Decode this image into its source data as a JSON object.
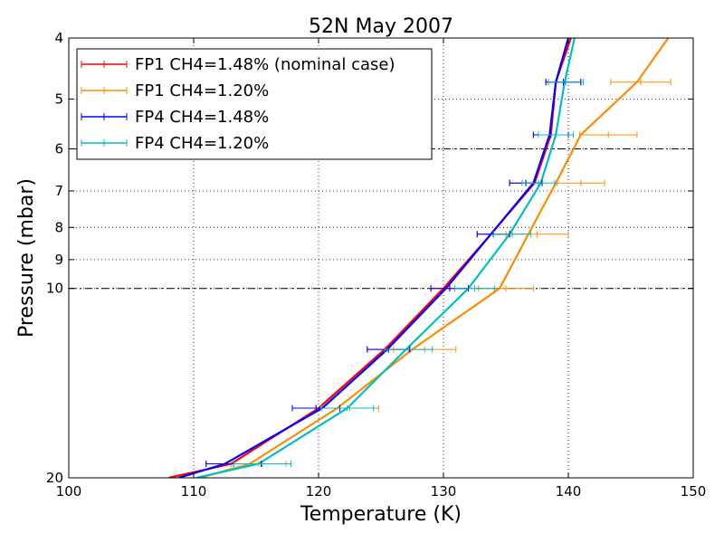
{
  "chart_data": {
    "type": "line",
    "title": "52N May 2007",
    "xlabel": "Temperature (K)",
    "ylabel": "Pressure (mbar)",
    "xlim": [
      100,
      150
    ],
    "ylim": [
      4,
      20
    ],
    "yscale": "log",
    "y_inverted": true,
    "grid": "dotted",
    "xticks": [
      100,
      110,
      120,
      130,
      140,
      150
    ],
    "xtick_labels": [
      "100",
      "110",
      "120",
      "130",
      "140",
      "150"
    ],
    "yticks": [
      4,
      5,
      6,
      7,
      8,
      9,
      10,
      20
    ],
    "ytick_labels": [
      "4",
      "5",
      "6",
      "7",
      "8",
      "9",
      "10",
      "20"
    ],
    "reference_lines": [
      6,
      10
    ],
    "legend_position": "top-left",
    "series": [
      {
        "name": "FP1 CH4=1.48% (nominal case)",
        "color": "#ff0000",
        "points": [
          [
            140.2,
            4
          ],
          [
            139,
            4.7
          ],
          [
            138.6,
            5.7
          ],
          [
            137.3,
            6.8
          ],
          [
            133.8,
            8.2
          ],
          [
            130,
            10
          ],
          [
            125.3,
            12.5
          ],
          [
            120,
            15.5
          ],
          [
            113,
            19
          ],
          [
            108,
            20
          ]
        ],
        "errorbars": [
          [
            139.6,
            4.7,
            1.4
          ],
          [
            138.6,
            5.7,
            1.4
          ],
          [
            136.6,
            6.8,
            1.3
          ],
          [
            134.0,
            8.2,
            1.3
          ],
          [
            130.5,
            10,
            1.5
          ],
          [
            125.6,
            12.5,
            1.7
          ],
          [
            119.8,
            15.5,
            1.9
          ],
          [
            113.2,
            19,
            2.2
          ]
        ]
      },
      {
        "name": "FP1 CH4=1.20%",
        "color": "#ff8c00",
        "points": [
          [
            148,
            4
          ],
          [
            145.5,
            4.7
          ],
          [
            141,
            5.7
          ],
          [
            139,
            6.8
          ],
          [
            136.8,
            8.2
          ],
          [
            134.5,
            10
          ],
          [
            127.5,
            12.5
          ],
          [
            121.5,
            15.5
          ],
          [
            114.5,
            19
          ],
          [
            110.5,
            20
          ]
        ],
        "errorbars": [
          [
            145.8,
            4.7,
            2.4
          ],
          [
            143.2,
            5.7,
            2.3
          ],
          [
            141.0,
            6.8,
            1.9
          ],
          [
            137.5,
            8.2,
            2.5
          ],
          [
            135.0,
            10,
            2.2
          ],
          [
            128.5,
            12.5,
            2.5
          ],
          [
            122.5,
            15.5,
            2.3
          ],
          [
            115.2,
            19,
            2.2
          ]
        ]
      },
      {
        "name": "FP4 CH4=1.48%",
        "color": "#0000ff",
        "points": [
          [
            140,
            4
          ],
          [
            139,
            4.7
          ],
          [
            138.5,
            5.7
          ],
          [
            137.2,
            6.8
          ],
          [
            133.8,
            8.2
          ],
          [
            130.2,
            10
          ],
          [
            125.5,
            12.5
          ],
          [
            120.3,
            15.5
          ],
          [
            112.5,
            19
          ],
          [
            108.8,
            20
          ]
        ],
        "errorbars": [
          [
            139.6,
            4.7,
            1.4
          ],
          [
            138.6,
            5.7,
            1.4
          ],
          [
            136.6,
            6.8,
            1.3
          ],
          [
            134.0,
            8.2,
            1.3
          ],
          [
            130.5,
            10,
            1.5
          ],
          [
            125.6,
            12.5,
            1.7
          ],
          [
            119.8,
            15.5,
            1.9
          ],
          [
            113.2,
            19,
            2.2
          ]
        ]
      },
      {
        "name": "FP4 CH4=1.20%",
        "color": "#00bfbf",
        "points": [
          [
            140.5,
            4
          ],
          [
            139.7,
            4.7
          ],
          [
            139,
            5.7
          ],
          [
            137.8,
            6.8
          ],
          [
            135.3,
            8.2
          ],
          [
            132,
            10
          ],
          [
            127,
            12.5
          ],
          [
            122.3,
            15.5
          ],
          [
            115.2,
            19
          ],
          [
            110.2,
            20
          ]
        ],
        "errorbars": [
          [
            139.8,
            4.7,
            1.4
          ],
          [
            139.0,
            5.7,
            1.4
          ],
          [
            137.6,
            6.8,
            1.3
          ],
          [
            135.5,
            8.2,
            1.5
          ],
          [
            132.5,
            10,
            1.6
          ],
          [
            127.2,
            12.5,
            1.9
          ],
          [
            122.3,
            15.5,
            2.1
          ],
          [
            115.5,
            19,
            2.3
          ]
        ]
      }
    ]
  }
}
